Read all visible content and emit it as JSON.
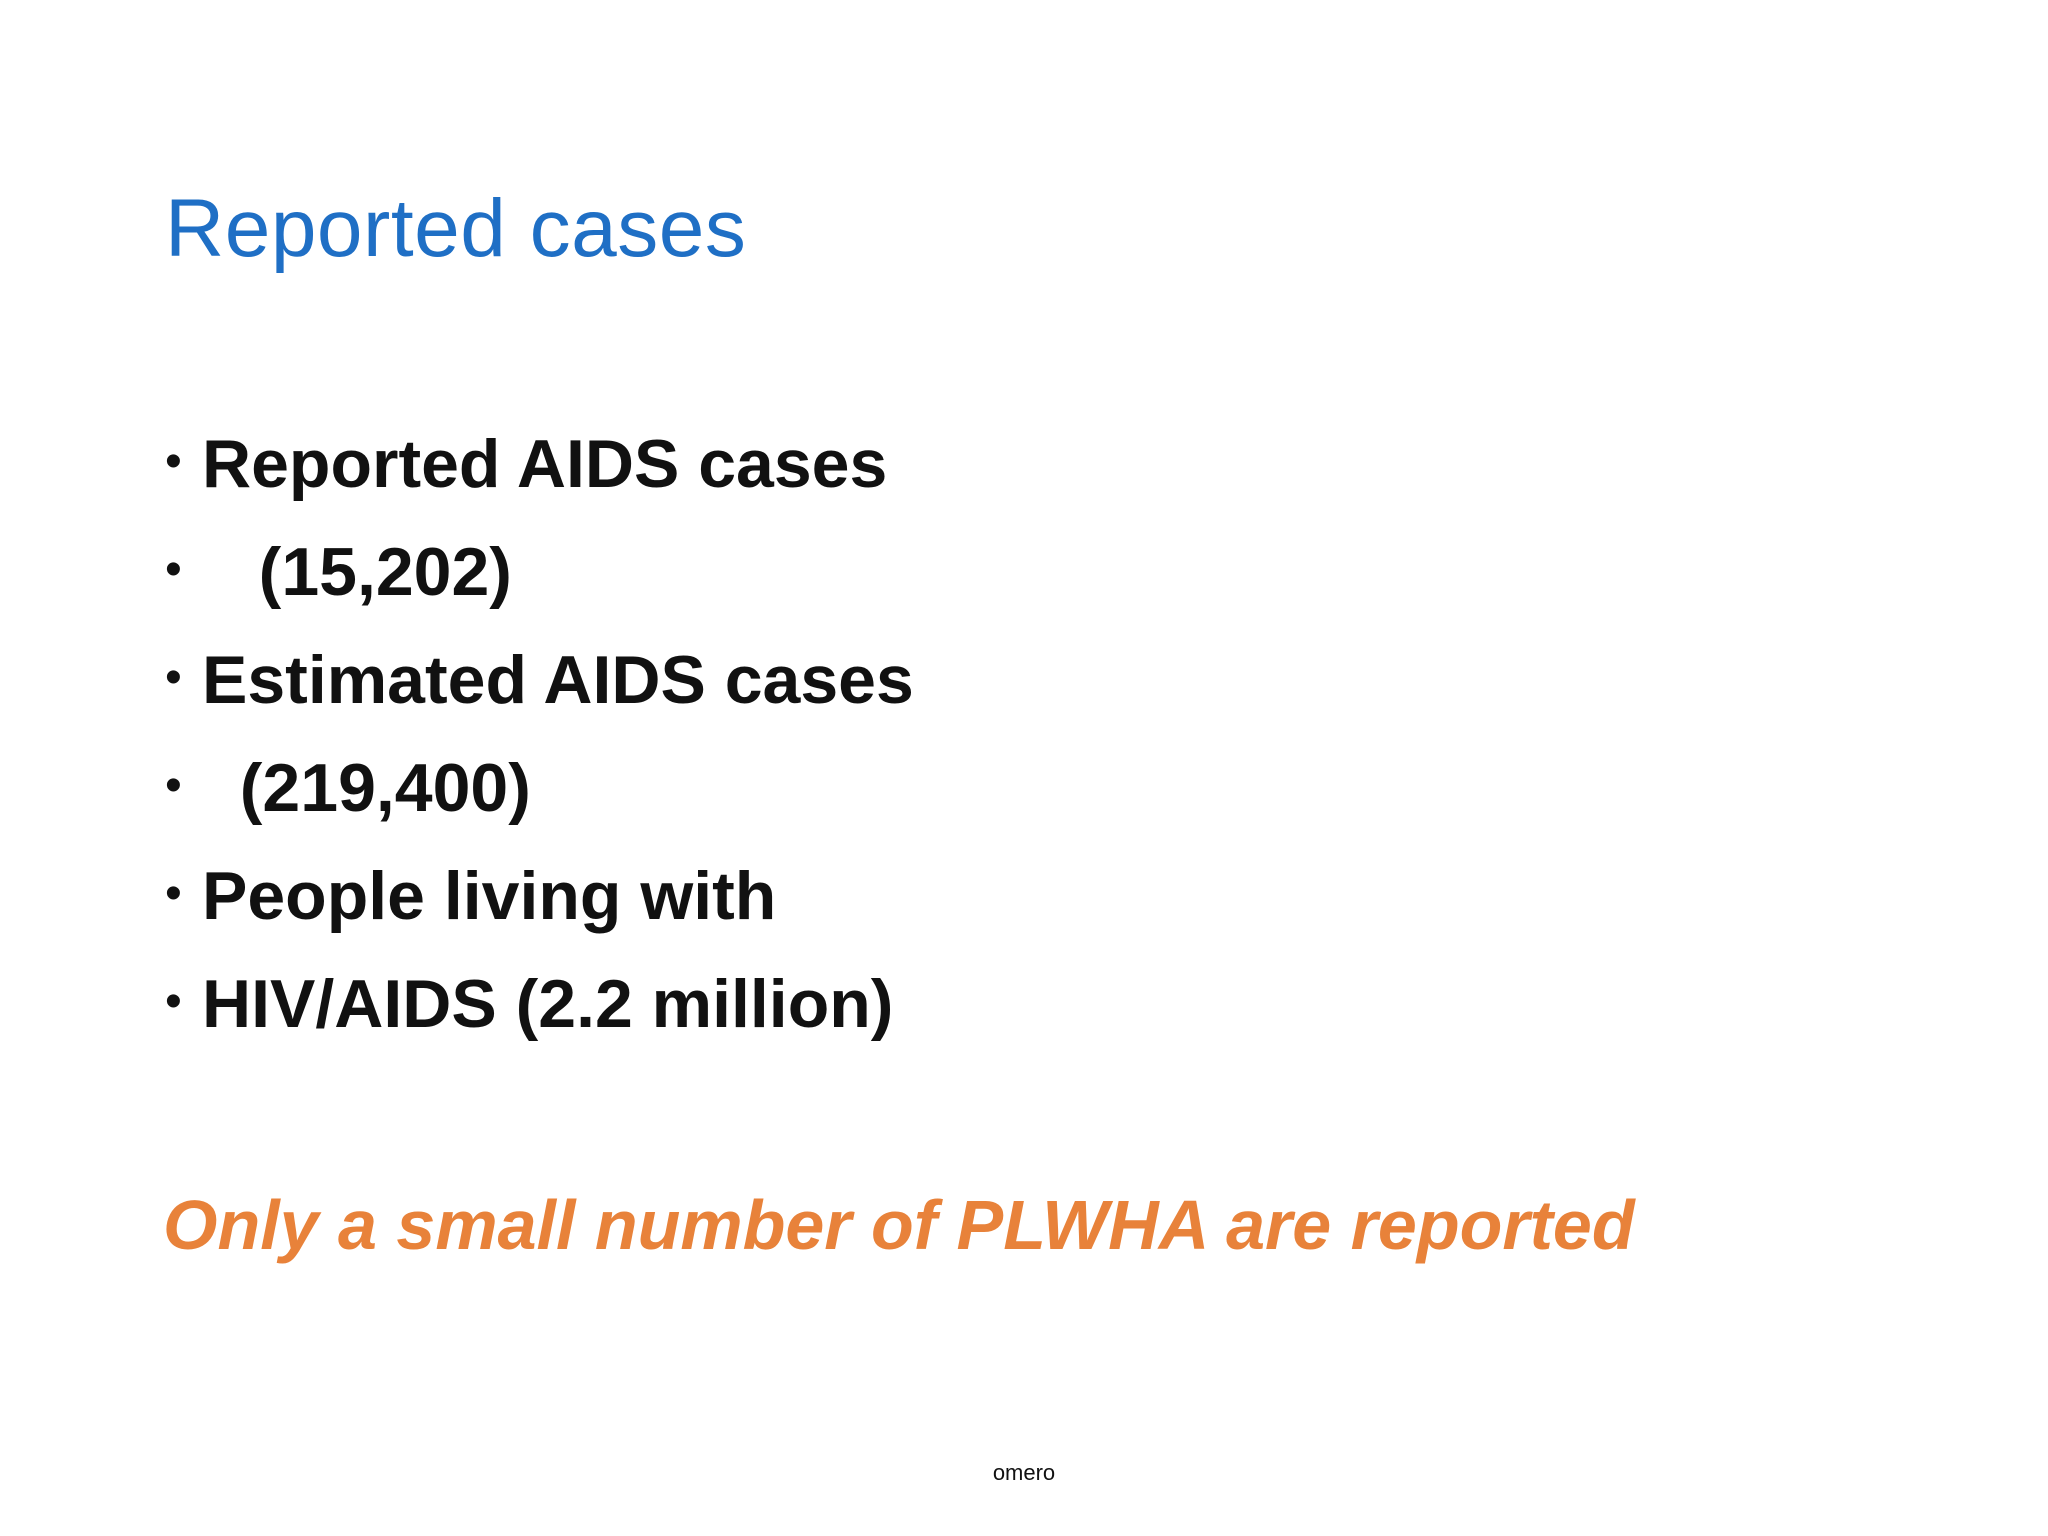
{
  "slide": {
    "title": "Reported cases",
    "bullets": [
      {
        "marker": "•",
        "text": "Reported AIDS cases"
      },
      {
        "marker": "•",
        "text": "   (15,202)"
      },
      {
        "marker": "•",
        "text": "Estimated AIDS cases"
      },
      {
        "marker": "•",
        "text": "  (219,400)"
      },
      {
        "marker": "•",
        "text": "People living with"
      },
      {
        "marker": "•",
        "text": "HIV/AIDS (2.2 million)"
      }
    ],
    "emphasis": "Only a small number of PLWHA are reported",
    "footer": "omero"
  },
  "colors": {
    "title": "#1f6fc5",
    "body": "#111111",
    "emphasis": "#e8823a",
    "background": "#ffffff"
  }
}
